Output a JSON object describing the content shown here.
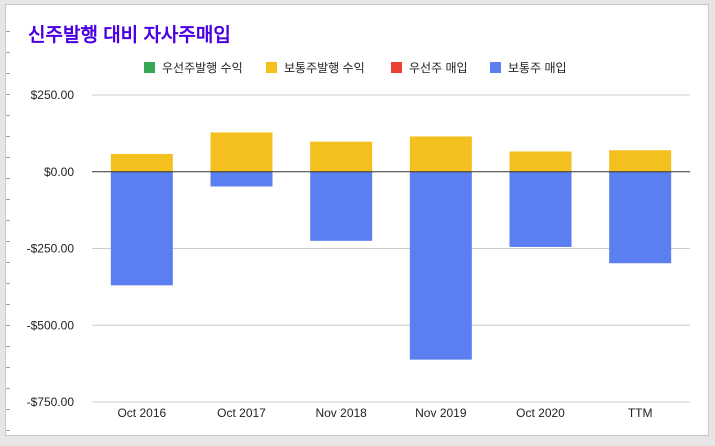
{
  "chart_data": {
    "type": "bar",
    "stacked": true,
    "title": "신주발행 대비 자사주매입",
    "categories": [
      "Oct 2016",
      "Oct 2017",
      "Nov 2018",
      "Nov 2019",
      "Oct 2020",
      "TTM"
    ],
    "series": [
      {
        "name": "우선주발행 수익",
        "color": "#34a853",
        "values": [
          0,
          0,
          0,
          0,
          0,
          0
        ]
      },
      {
        "name": "보통주발행 수익",
        "color": "#f4c020",
        "values": [
          58,
          128,
          98,
          115,
          66,
          70
        ]
      },
      {
        "name": "우선주 매입",
        "color": "#ea4335",
        "values": [
          0,
          0,
          0,
          0,
          0,
          0
        ]
      },
      {
        "name": "보통주 매입",
        "color": "#5b7ff0",
        "values": [
          -370,
          -48,
          -225,
          -612,
          -245,
          -298
        ]
      }
    ],
    "ylim": [
      -750,
      250
    ],
    "yticks": [
      250,
      0,
      -250,
      -500,
      -750
    ],
    "ytick_labels": [
      "$250.00",
      "$0.00",
      "-$250.00",
      "-$500.00",
      "-$750.00"
    ],
    "grid": true,
    "legend_position": "top"
  }
}
